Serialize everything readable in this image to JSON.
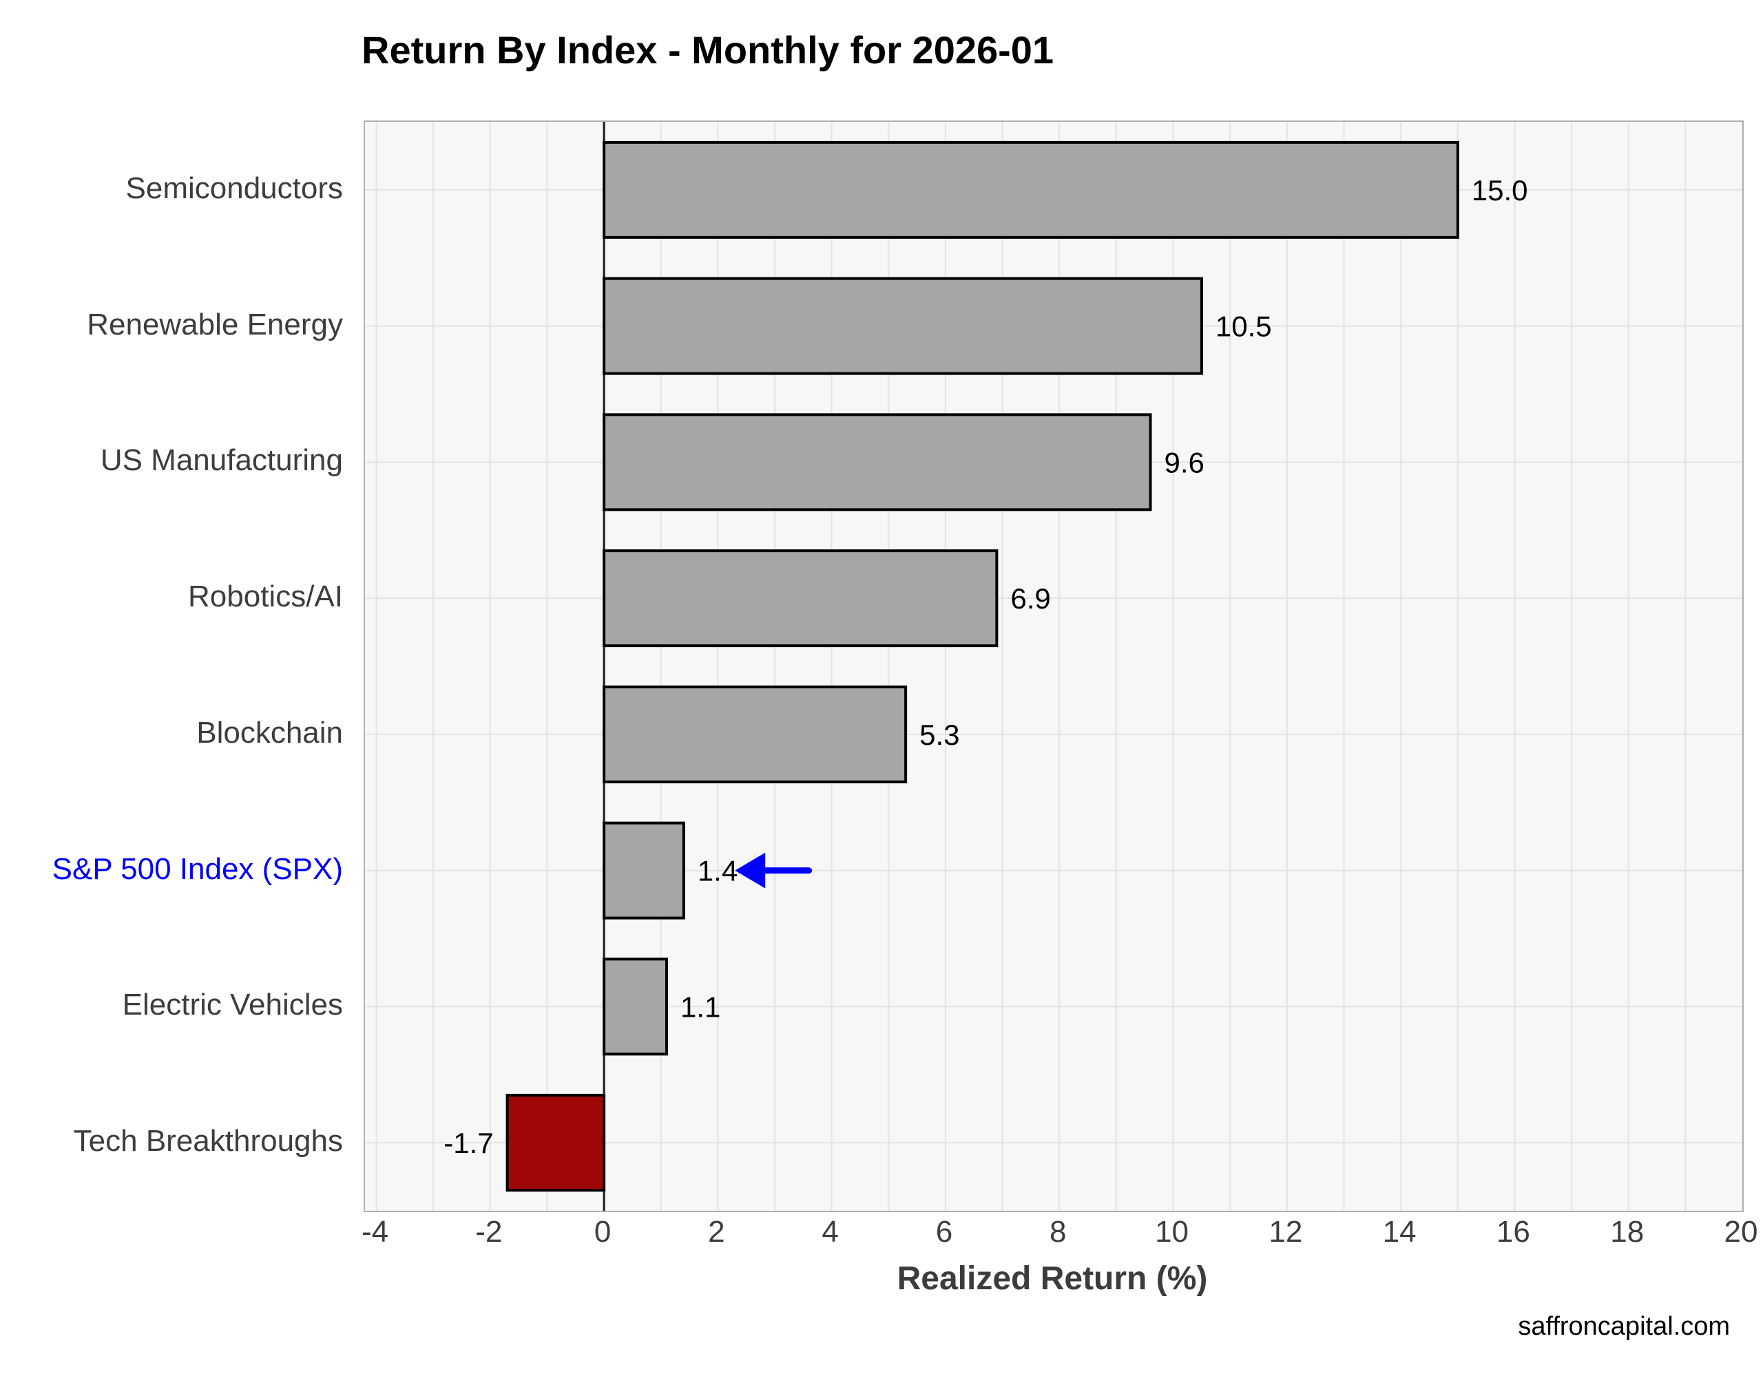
{
  "title": "Return By Index - Monthly for 2026-01",
  "footer": "saffroncapital.com",
  "colors": {
    "plot_background": "#f7f7f7",
    "grid": "#e3e3e3",
    "zero_line": "#1a1a1a",
    "bar_border": "#000000",
    "bar_positive": "#a6a6a6",
    "bar_negative": "#a00606",
    "highlight_blue": "#0000ff",
    "axis_text": "#3d3d3d",
    "value_text": "#000000"
  },
  "chart_data": {
    "type": "bar",
    "orientation": "horizontal",
    "title": "Return By Index - Monthly for 2026-01",
    "xlabel": "Realized Return (%)",
    "categories": [
      "Semiconductors",
      "Renewable Energy",
      "US Manufacturing",
      "Robotics/AI",
      "Blockchain",
      "S&P 500 Index (SPX)",
      "Electric Vehicles",
      "Tech Breakthroughs"
    ],
    "values": [
      15.0,
      10.5,
      9.6,
      6.9,
      5.3,
      1.4,
      1.1,
      -1.7
    ],
    "value_labels": [
      "15.0",
      "10.5",
      "9.6",
      "6.9",
      "5.3",
      "1.4",
      "1.1",
      "-1.7"
    ],
    "bar_colors": [
      "#a6a6a6",
      "#a6a6a6",
      "#a6a6a6",
      "#a6a6a6",
      "#a6a6a6",
      "#a6a6a6",
      "#a6a6a6",
      "#a00606"
    ],
    "category_label_colors": [
      "#3d3d3d",
      "#3d3d3d",
      "#3d3d3d",
      "#3d3d3d",
      "#3d3d3d",
      "#0000ff",
      "#3d3d3d",
      "#3d3d3d"
    ],
    "x_ticks": [
      -4,
      -2,
      0,
      2,
      4,
      6,
      8,
      10,
      12,
      14,
      16,
      18,
      20
    ],
    "xlim": [
      -4.2,
      20.0
    ],
    "minor_grid_step": 1,
    "grid": "on",
    "legend": "none",
    "annotations": [
      {
        "type": "arrow",
        "row_index": 5,
        "x_from": 3.6,
        "x_to": 2.3,
        "color": "#0000ff"
      }
    ]
  }
}
